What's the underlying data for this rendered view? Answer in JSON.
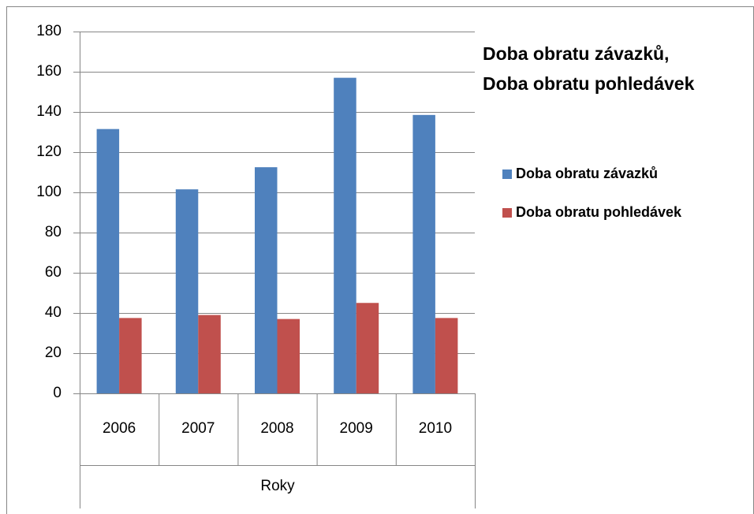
{
  "chart_data": {
    "type": "bar",
    "title": [
      "Doba obratu závazků,",
      "Doba obratu pohledávek"
    ],
    "xlabel": "Roky",
    "categories": [
      "2006",
      "2007",
      "2008",
      "2009",
      "2010"
    ],
    "series": [
      {
        "name": "Doba obratu závazků",
        "color": "#4f81bd",
        "values": [
          131.5,
          101.5,
          112.5,
          157,
          138.5
        ]
      },
      {
        "name": "Doba obratu pohledávek",
        "color": "#c0504d",
        "values": [
          37.5,
          39,
          37,
          45,
          37.5
        ]
      }
    ],
    "ylim": [
      0,
      180
    ],
    "yticks": [
      0,
      20,
      40,
      60,
      80,
      100,
      120,
      140,
      160,
      180
    ],
    "grid": true,
    "legend": "right"
  }
}
